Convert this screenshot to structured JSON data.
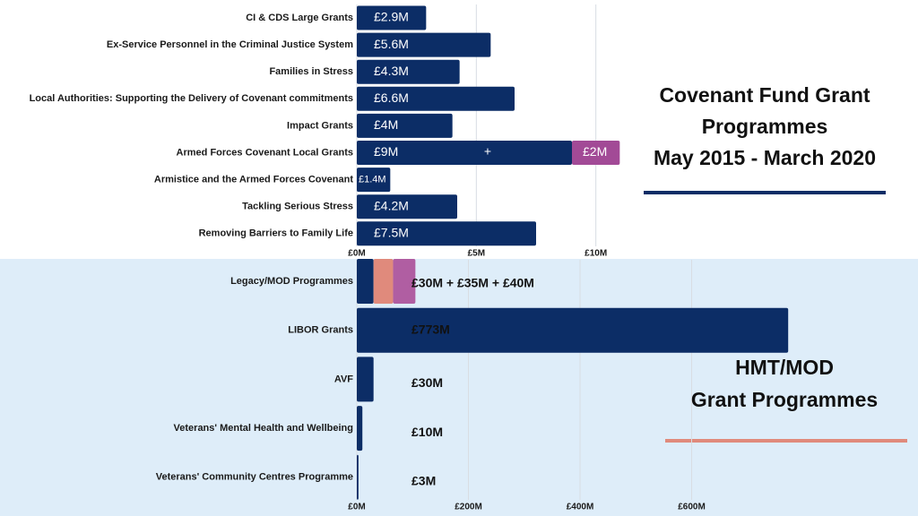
{
  "chart_data": [
    {
      "type": "hbar",
      "title": [
        "Covenant Fund Grant",
        "Programmes",
        "May 2015 - March 2020"
      ],
      "categories": [
        "CI & CDS Large Grants",
        "Ex-Service Personnel in the Criminal Justice System",
        "Families in Stress",
        "Local Authorities: Supporting the Delivery of Covenant commitments",
        "Impact Grants",
        "Armed Forces Covenant Local Grants",
        "Armistice and the Armed Forces Covenant",
        "Tackling Serious Stress",
        "Removing Barriers to Family Life"
      ],
      "series": [
        {
          "color": "#0c2d66",
          "values": [
            2.9,
            5.6,
            4.3,
            6.6,
            4,
            9,
            1.4,
            4.2,
            7.5
          ],
          "value_labels": [
            "£2.9M",
            "£5.6M",
            "£4.3M",
            "£6.6M",
            "£4M",
            "£9M",
            "£1.4M",
            "£4.2M",
            "£7.5M"
          ]
        },
        {
          "color": "#a24a96",
          "values": [
            null,
            null,
            null,
            null,
            null,
            2,
            null,
            null,
            null
          ],
          "value_labels": [
            null,
            null,
            null,
            null,
            null,
            "£2M",
            null,
            null,
            null
          ]
        }
      ],
      "annotations": [
        "+"
      ],
      "xlim": [
        0,
        15
      ],
      "xticks": [
        {
          "value": 0,
          "label": "£0M"
        },
        {
          "value": 5,
          "label": "£5M"
        },
        {
          "value": 10,
          "label": "£10M"
        }
      ],
      "grid": true
    },
    {
      "type": "hbar",
      "title": [
        "HMT/MOD",
        "Grant Programmes"
      ],
      "categories": [
        "Legacy/MOD Programmes",
        "LIBOR Grants",
        "AVF",
        "Veterans' Mental Health and Wellbeing",
        "Veterans' Community Centres Programme"
      ],
      "series": [
        {
          "color": "#0c2d66",
          "values": [
            30,
            773,
            30,
            10,
            3
          ],
          "value_labels": [
            null,
            "£773M",
            "£30M",
            "£10M",
            "£3M"
          ]
        },
        {
          "color": "#e08a7c",
          "values": [
            35,
            null,
            null,
            null,
            null
          ]
        },
        {
          "color": "#b05ea2",
          "values": [
            40,
            null,
            null,
            null,
            null
          ]
        }
      ],
      "annotations": [
        "£30M + £35M + £40M"
      ],
      "xlim": [
        0,
        800
      ],
      "xticks": [
        {
          "value": 0,
          "label": "£0M"
        },
        {
          "value": 200,
          "label": "£200M"
        },
        {
          "value": 400,
          "label": "£400M"
        },
        {
          "value": 600,
          "label": "£600M"
        }
      ],
      "grid": true
    }
  ]
}
